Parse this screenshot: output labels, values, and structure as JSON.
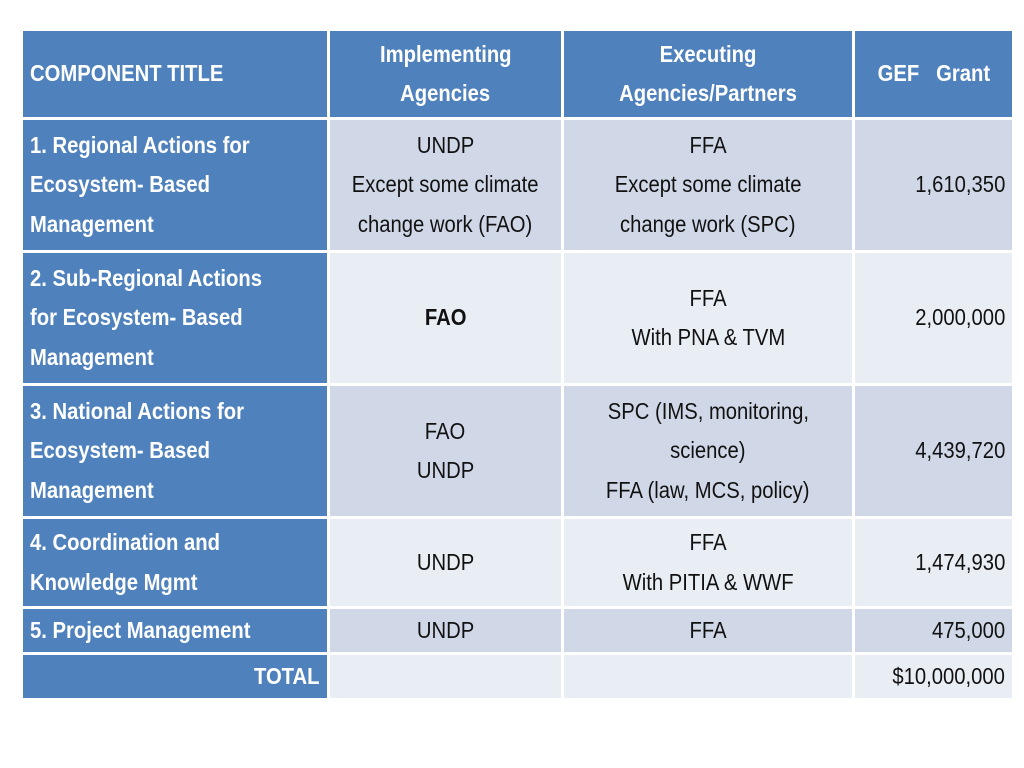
{
  "table": {
    "headers": {
      "component_title": "COMPONENT TITLE",
      "implementing": [
        "Implementing",
        "Agencies"
      ],
      "executing": [
        "Executing",
        "Agencies/Partners"
      ],
      "gef_grant": "GEF   Grant"
    },
    "rows": [
      {
        "title": [
          "1.  Regional Actions for",
          "Ecosystem- Based",
          "Management"
        ],
        "implementing": [
          "UNDP",
          "Except some climate",
          "change work (FAO)"
        ],
        "executing": [
          "FFA",
          "Except some climate",
          "change work (SPC)"
        ],
        "grant": "1,610,350"
      },
      {
        "title": [
          "2.  Sub-Regional Actions",
          "for Ecosystem- Based",
          "Management"
        ],
        "implementing": [
          "FAO"
        ],
        "executing": [
          "FFA",
          "With PNA & TVM"
        ],
        "grant": "2,000,000"
      },
      {
        "title": [
          "3. National Actions for",
          "Ecosystem- Based",
          "Management"
        ],
        "implementing": [
          "FAO",
          "UNDP"
        ],
        "executing": [
          "SPC (IMS, monitoring,",
          "science)",
          "FFA (law, MCS, policy)"
        ],
        "grant": "4,439,720"
      },
      {
        "title": [
          "4. Coordination and",
          "Knowledge Mgmt"
        ],
        "implementing": [
          "UNDP"
        ],
        "executing": [
          "FFA",
          "With PITIA & WWF"
        ],
        "grant": "1,474,930"
      },
      {
        "title": [
          "5. Project Management"
        ],
        "implementing": [
          "UNDP"
        ],
        "executing": [
          "FFA"
        ],
        "grant": "475,000"
      }
    ],
    "total": {
      "label": "TOTAL",
      "implementing": "",
      "executing": "",
      "grant": "$10,000,000"
    },
    "colors": {
      "header_blue": "#4f81bd",
      "row_dark": "#d0d8e8",
      "row_light": "#e9edf4",
      "header_text": "#ffffff"
    }
  }
}
